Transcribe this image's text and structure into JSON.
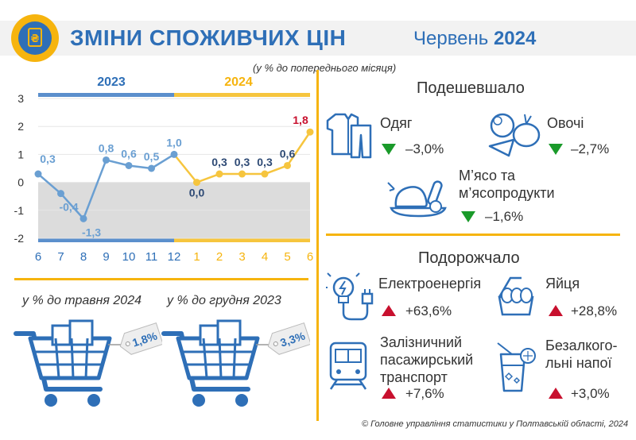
{
  "header": {
    "title": "ЗМІНИ СПОЖИВЧИХ ЦІН",
    "period_month": "Червень",
    "period_year": "2024",
    "logo_glyph": "₴"
  },
  "subtitle": "(у % до попереднього місяця)",
  "colors": {
    "blue": "#2e6fb7",
    "gold": "#f6b40e",
    "point_blue": "#6a9fd2",
    "red": "#c8102e",
    "green": "#1a9a2a"
  },
  "chart_data": {
    "type": "line",
    "categories": [
      "6",
      "7",
      "8",
      "9",
      "10",
      "11",
      "12",
      "1",
      "2",
      "3",
      "4",
      "5",
      "6"
    ],
    "year_groups": [
      {
        "label": "2023",
        "months": 7
      },
      {
        "label": "2024",
        "months": 6
      }
    ],
    "series": [
      {
        "values": [
          0.3,
          -0.4,
          -1.3,
          0.8,
          0.6,
          0.5,
          1.0,
          0.0,
          0.3,
          0.3,
          0.3,
          0.6,
          1.8
        ]
      }
    ],
    "labels": [
      "0,3",
      "-0,4",
      "-1,3",
      "0,8",
      "0,6",
      "0,5",
      "1,0",
      "0,0",
      "0,3",
      "0,3",
      "0,3",
      "0,6",
      "1,8"
    ],
    "yticks": [
      "3",
      "2",
      "1",
      "0",
      "-1",
      "-2"
    ],
    "ylim": [
      -2,
      3
    ]
  },
  "cheaper": {
    "title": "Подешевшало",
    "items": [
      {
        "label": "Одяг",
        "value": "–3,0%",
        "icon": "clothes-icon"
      },
      {
        "label": "Овочі",
        "value": "–2,7%",
        "icon": "vegetables-icon"
      },
      {
        "label": "М’ясо та м’ясопродукти",
        "value": "–1,6%",
        "icon": "meat-icon"
      }
    ]
  },
  "pricier": {
    "title": "Подорожчало",
    "items": [
      {
        "label": "Електроенергія",
        "value": "+63,6%",
        "icon": "electricity-icon"
      },
      {
        "label": "Яйця",
        "value": "+28,8%",
        "icon": "eggs-icon"
      },
      {
        "label": "Залізничний пасажирський транспорт",
        "value": "+7,6%",
        "icon": "train-icon"
      },
      {
        "label": "Безалкого-льні напої",
        "value": "+3,0%",
        "icon": "drink-icon"
      }
    ]
  },
  "cumulative": [
    {
      "label": "у % до травня 2024",
      "value": "1,8%"
    },
    {
      "label": "у % до грудня 2023",
      "value": "3,3%"
    }
  ],
  "footer": "© Головне управління статистики у Полтавській області, 2024"
}
